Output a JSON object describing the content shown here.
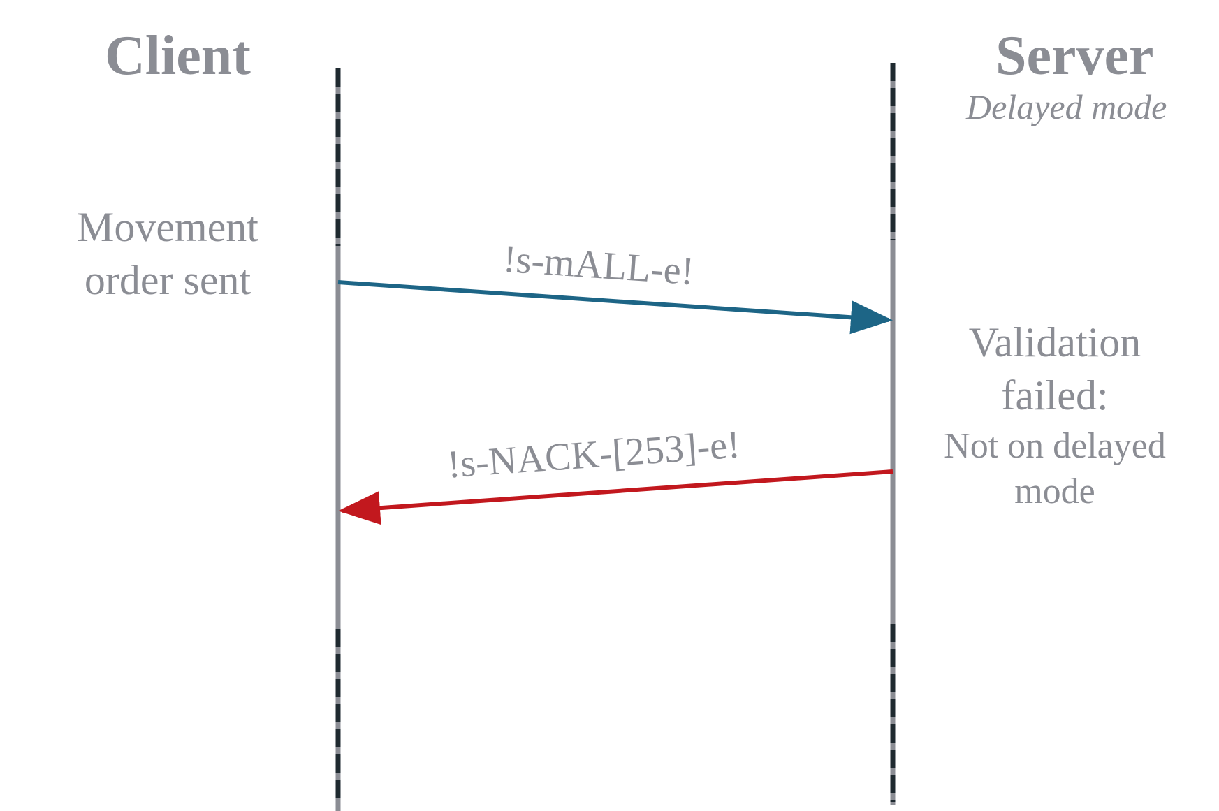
{
  "participants": {
    "client": {
      "title": "Client"
    },
    "server": {
      "title": "Server",
      "subtitle": "Delayed mode"
    }
  },
  "notes": {
    "client_event": {
      "line1": "Movement",
      "line2": "order sent"
    },
    "server_event": {
      "line1": "Validation",
      "line2": "failed:",
      "line3": "Not on delayed",
      "line4": "mode"
    }
  },
  "messages": [
    {
      "label": "!s-mALL-e!",
      "from": "client",
      "to": "server",
      "color": "#1d6586"
    },
    {
      "label": "!s-NACK-[253]-e!",
      "from": "server",
      "to": "client",
      "color": "#c2181e"
    }
  ],
  "colors": {
    "lifeline_solid": "#8b8d94",
    "lifeline_dash": "#1f2a30",
    "text": "#8b8d94",
    "request_arrow": "#1d6586",
    "response_arrow": "#c2181e"
  }
}
